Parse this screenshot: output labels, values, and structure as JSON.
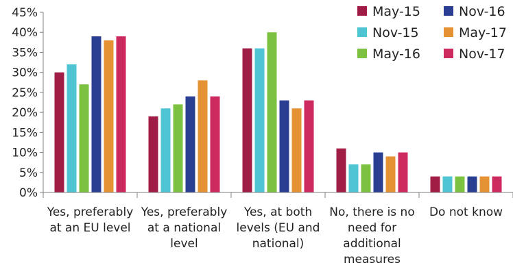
{
  "chart_data": {
    "type": "bar",
    "title": "",
    "xlabel": "",
    "ylabel": "",
    "ylim": [
      0,
      45
    ],
    "yticks": [
      "0%",
      "5%",
      "10%",
      "15%",
      "20%",
      "25%",
      "30%",
      "35%",
      "40%",
      "45%"
    ],
    "grid": false,
    "legend": "top-right",
    "categories": [
      [
        "Yes, preferably",
        "at an EU level"
      ],
      [
        "Yes, preferably",
        "at a national",
        "level"
      ],
      [
        "Yes, at both",
        "levels (EU and",
        "national)"
      ],
      [
        "No, there is no",
        "need for",
        "additional",
        "measures"
      ],
      [
        "Do not know"
      ]
    ],
    "series": [
      {
        "name": "May-15",
        "color": "#a01e46",
        "values": [
          30,
          19,
          36,
          11,
          4
        ]
      },
      {
        "name": "Nov-15",
        "color": "#4fc4d3",
        "values": [
          32,
          21,
          36,
          7,
          4
        ]
      },
      {
        "name": "May-16",
        "color": "#7dc141",
        "values": [
          27,
          22,
          40,
          7,
          4
        ]
      },
      {
        "name": "Nov-16",
        "color": "#2b3f92",
        "values": [
          39,
          24,
          23,
          10,
          4
        ]
      },
      {
        "name": "May-17",
        "color": "#e59234",
        "values": [
          38,
          28,
          21,
          9,
          4
        ]
      },
      {
        "name": "Nov-17",
        "color": "#cc2a5f",
        "values": [
          39,
          24,
          23,
          10,
          4
        ]
      }
    ]
  }
}
